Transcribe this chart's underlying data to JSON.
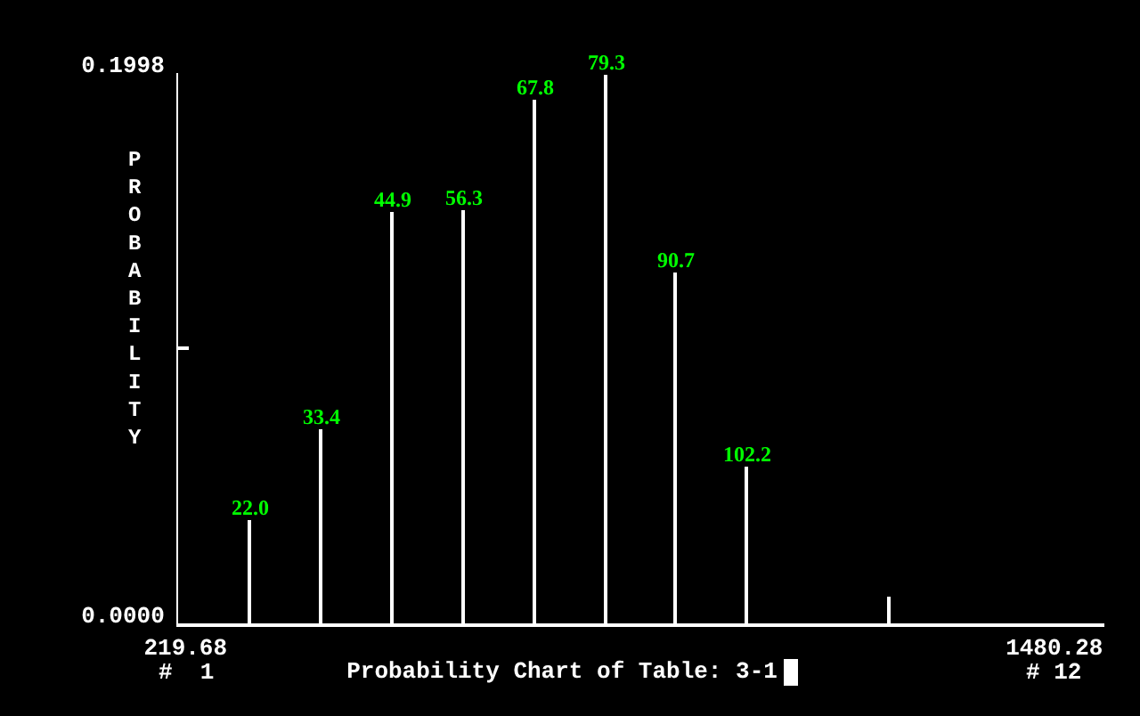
{
  "chart_data": {
    "type": "bar",
    "title": "Probability Chart of Table: 3-1",
    "ylabel": "PROBABILITY",
    "x": [
      314,
      417,
      520,
      623,
      727,
      830,
      931,
      1034,
      1241
    ],
    "values": [
      0.0374,
      0.0705,
      0.1491,
      0.1497,
      0.1901,
      0.199,
      0.1271,
      0.0569,
      0.0094
    ],
    "color": "#ffffff",
    "xlim": [
      209,
      1553
    ],
    "xticks": [
      219.68,
      1480.28
    ],
    "ylim": [
      0,
      0.1998
    ],
    "yticks": [
      {
        "value": 0,
        "label": "0.0000"
      },
      {
        "value": 0.0999,
        "label": null
      },
      {
        "value": 0.1998,
        "label": "0.1998"
      }
    ],
    "annotations": [
      "#  1",
      "# 12",
      {
        "text": "22.0",
        "x": 314,
        "y": 0.0374
      },
      {
        "text": "33.4",
        "x": 417,
        "y": 0.0705
      },
      {
        "text": "44.9",
        "x": 520,
        "y": 0.1491
      },
      {
        "text": "56.3",
        "x": 623,
        "y": 0.1497
      },
      {
        "text": "67.8",
        "x": 727,
        "y": 0.1901
      },
      {
        "text": "79.3",
        "x": 830,
        "y": 0.199
      },
      {
        "text": "90.7",
        "x": 931,
        "y": 0.1271
      },
      {
        "text": "102.2",
        "x": 1034,
        "y": 0.0569
      }
    ],
    "grid": false
  }
}
